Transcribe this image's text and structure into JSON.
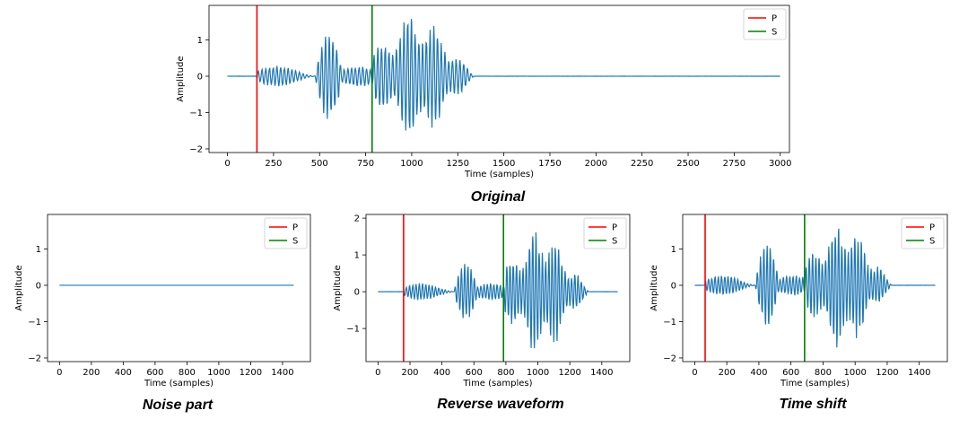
{
  "chart_data": [
    {
      "type": "line",
      "caption": "Original",
      "xlabel": "Time (samples)",
      "ylabel": "Amplitude",
      "xlim": [
        -100,
        3050
      ],
      "ylim": [
        -2.1,
        1.95
      ],
      "xticks": [
        0,
        250,
        500,
        750,
        1000,
        1250,
        1500,
        1750,
        2000,
        2250,
        2500,
        2750,
        3000
      ],
      "yticks": [
        -2,
        -1,
        0,
        1
      ],
      "series": [
        {
          "name": "waveform",
          "color": "#1f77b4",
          "n_samples": 3000,
          "p_onset": 160,
          "s_onset": 790,
          "coda_end": 1340,
          "p_peak": 0.25,
          "burst_peak": 1.05,
          "s_peak": 1.85
        }
      ],
      "markers": [
        {
          "name": "P",
          "x": 160,
          "color": "#ff0000"
        },
        {
          "name": "S",
          "x": 785,
          "color": "#008000"
        }
      ],
      "legend": [
        "P",
        "S"
      ],
      "legend_position": "top-right"
    },
    {
      "type": "line",
      "caption": "Noise part",
      "xlabel": "Time (samples)",
      "ylabel": "Amplitude",
      "xlim": [
        -75,
        1575
      ],
      "ylim": [
        -2.1,
        1.95
      ],
      "xticks": [
        0,
        200,
        400,
        600,
        800,
        1000,
        1200,
        1400
      ],
      "yticks": [
        -2,
        -1,
        0,
        1
      ],
      "series": [
        {
          "name": "waveform",
          "color": "#1f77b4",
          "n_samples": 1470,
          "flat": true
        }
      ],
      "markers": [],
      "legend": [
        "P",
        "S"
      ],
      "legend_position": "top-right"
    },
    {
      "type": "line",
      "caption": "Reverse waveform",
      "xlabel": "Time (samples)",
      "ylabel": "Amplitude",
      "xlim": [
        -75,
        1575
      ],
      "ylim": [
        -1.9,
        2.1
      ],
      "xticks": [
        0,
        200,
        400,
        600,
        800,
        1000,
        1200,
        1400
      ],
      "yticks": [
        -1,
        0,
        1,
        2
      ],
      "series": [
        {
          "name": "waveform",
          "color": "#1f77b4",
          "n_samples": 1500,
          "p_onset": 160,
          "s_onset": 790,
          "coda_end": 1320,
          "p_peak": 0.2,
          "burst_peak": 0.7,
          "s_peak": 1.75,
          "flip": true
        }
      ],
      "markers": [
        {
          "name": "P",
          "x": 160,
          "color": "#ff0000"
        },
        {
          "name": "S",
          "x": 785,
          "color": "#008000"
        }
      ],
      "legend": [
        "P",
        "S"
      ],
      "legend_position": "top-right"
    },
    {
      "type": "line",
      "caption": "Time shift",
      "xlabel": "Time (samples)",
      "ylabel": "Amplitude",
      "xlim": [
        -75,
        1575
      ],
      "ylim": [
        -2.1,
        1.95
      ],
      "xticks": [
        0,
        200,
        400,
        600,
        800,
        1000,
        1200,
        1400
      ],
      "yticks": [
        -2,
        -1,
        0,
        1
      ],
      "series": [
        {
          "name": "waveform",
          "color": "#1f77b4",
          "n_samples": 1500,
          "p_onset": 65,
          "s_onset": 690,
          "coda_end": 1230,
          "p_peak": 0.25,
          "burst_peak": 1.05,
          "s_peak": 1.85
        }
      ],
      "markers": [
        {
          "name": "P",
          "x": 65,
          "color": "#ff0000"
        },
        {
          "name": "S",
          "x": 685,
          "color": "#008000"
        }
      ],
      "legend": [
        "P",
        "S"
      ],
      "legend_position": "top-right"
    }
  ]
}
